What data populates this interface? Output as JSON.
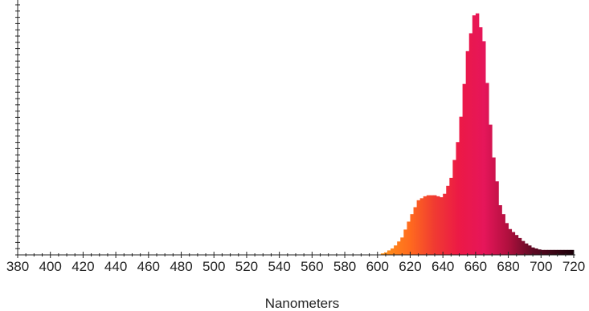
{
  "chart_data": {
    "type": "area",
    "title": "",
    "xlabel": "Nanometers",
    "ylabel": "",
    "xlim": [
      380,
      720
    ],
    "ylim": [
      0,
      1
    ],
    "x_ticks": [
      "380",
      "400",
      "420",
      "440",
      "460",
      "480",
      "500",
      "520",
      "540",
      "560",
      "580",
      "600",
      "620",
      "640",
      "660",
      "680",
      "700",
      "720"
    ],
    "grid": false,
    "fill": "visible-spectrum colour gradient",
    "series": [
      {
        "x": [
          380,
          600,
          605,
          610,
          615,
          620,
          625,
          630,
          635,
          640,
          645,
          650,
          655,
          660,
          665,
          670,
          675,
          680,
          685,
          690,
          695,
          700,
          705,
          710,
          715,
          720
        ],
        "values": [
          0,
          0,
          0.01,
          0.03,
          0.07,
          0.15,
          0.22,
          0.24,
          0.24,
          0.23,
          0.31,
          0.49,
          0.82,
          1.0,
          0.86,
          0.44,
          0.2,
          0.11,
          0.08,
          0.05,
          0.03,
          0.02,
          0.02,
          0.02,
          0.02,
          0.02
        ]
      }
    ],
    "colors": {
      "spectrum_stops": [
        {
          "nm": 600,
          "color": "#ff9a1a"
        },
        {
          "nm": 620,
          "color": "#ff6a1e"
        },
        {
          "nm": 635,
          "color": "#f03a32"
        },
        {
          "nm": 650,
          "color": "#ec1946"
        },
        {
          "nm": 665,
          "color": "#e6165a"
        },
        {
          "nm": 680,
          "color": "#b0103e"
        },
        {
          "nm": 695,
          "color": "#5e0a24"
        },
        {
          "nm": 720,
          "color": "#1a0008"
        }
      ],
      "axis": "#222222"
    }
  }
}
